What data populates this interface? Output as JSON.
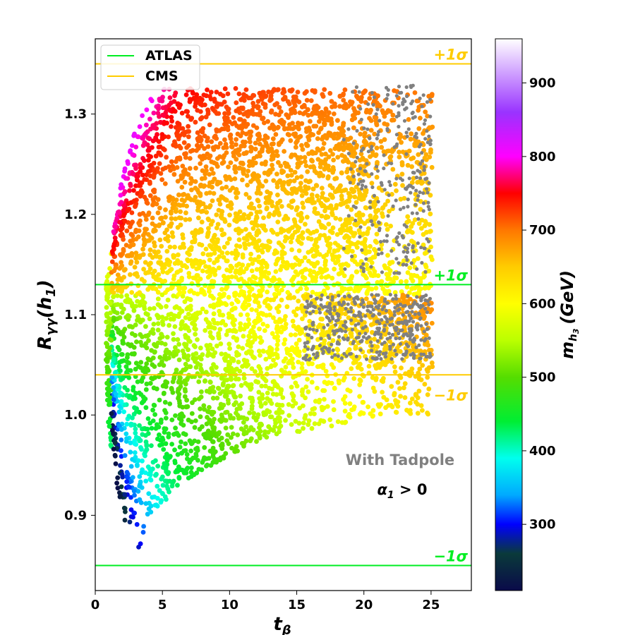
{
  "chart_data": {
    "type": "scatter",
    "title": "",
    "xlabel": "t",
    "xlabel_sub": "β",
    "ylabel_main": "R",
    "ylabel_sub": "γγ",
    "ylabel_arg": "(h",
    "ylabel_arg_sub": "1",
    "ylabel_close": ")",
    "xlim": [
      0,
      28
    ],
    "ylim": [
      0.825,
      1.375
    ],
    "x_ticks": [
      0,
      5,
      10,
      15,
      20,
      25
    ],
    "y_ticks": [
      0.9,
      1.0,
      1.1,
      1.2,
      1.3
    ],
    "y_tick_labels": [
      "0.9",
      "1.0",
      "1.1",
      "1.2",
      "1.3"
    ],
    "grid": false,
    "legend": {
      "placement": "top-left",
      "entries": [
        {
          "label": "ATLAS",
          "color": "#00ee22"
        },
        {
          "label": "CMS",
          "color": "#ffcc00"
        }
      ]
    },
    "reference_lines": [
      {
        "name": "CMS +1σ",
        "y": 1.35,
        "color": "#ffcc00",
        "label": "+1σ"
      },
      {
        "name": "ATLAS +1σ",
        "y": 1.13,
        "color": "#00ee22",
        "label": "+1σ"
      },
      {
        "name": "CMS -1σ",
        "y": 1.04,
        "color": "#ffcc00",
        "label": "−1σ"
      },
      {
        "name": "ATLAS -1σ",
        "y": 0.85,
        "color": "#00ee22",
        "label": "−1σ"
      }
    ],
    "annotations": [
      {
        "text": "With Tadpole",
        "x": 22.5,
        "y": 0.952,
        "color": "#808080"
      },
      {
        "text_main": "α",
        "text_sub": "1",
        "text_rest": " > 0",
        "x": 22.5,
        "y": 0.92,
        "color": "#000000"
      }
    ],
    "colorbar": {
      "label_main": "m",
      "label_sub": "h",
      "label_subsub": "3",
      "label_unit": "(GeV)",
      "range": [
        210,
        960
      ],
      "ticks": [
        300,
        400,
        500,
        600,
        700,
        800,
        900
      ],
      "colormap_stops": [
        {
          "value": 210,
          "color": "#0a0a4a"
        },
        {
          "value": 260,
          "color": "#0a3a3a"
        },
        {
          "value": 300,
          "color": "#0000ff"
        },
        {
          "value": 340,
          "color": "#00aaff"
        },
        {
          "value": 390,
          "color": "#00ffee"
        },
        {
          "value": 440,
          "color": "#00ee33"
        },
        {
          "value": 500,
          "color": "#55dd00"
        },
        {
          "value": 550,
          "color": "#bbff00"
        },
        {
          "value": 600,
          "color": "#ffff00"
        },
        {
          "value": 650,
          "color": "#ffcc00"
        },
        {
          "value": 700,
          "color": "#ff7700"
        },
        {
          "value": 750,
          "color": "#ff0000"
        },
        {
          "value": 800,
          "color": "#ff00ff"
        },
        {
          "value": 860,
          "color": "#9933ff"
        },
        {
          "value": 960,
          "color": "#ffffff"
        }
      ]
    },
    "series": [
      {
        "description": "colored points (color = m_h3), envelope approximated",
        "envelope_upper": [
          [
            0.8,
            1.13
          ],
          [
            1.5,
            1.2
          ],
          [
            2.5,
            1.27
          ],
          [
            3.5,
            1.31
          ],
          [
            5,
            1.325
          ],
          [
            10,
            1.326
          ],
          [
            20,
            1.324
          ],
          [
            25,
            1.323
          ]
        ],
        "envelope_lower": [
          [
            0.8,
            1.05
          ],
          [
            1.0,
            0.98
          ],
          [
            2.0,
            0.9
          ],
          [
            3.2,
            0.866
          ],
          [
            4.5,
            0.905
          ],
          [
            6,
            0.925
          ],
          [
            8,
            0.945
          ],
          [
            10,
            0.96
          ],
          [
            14,
            0.98
          ],
          [
            18,
            0.99
          ],
          [
            22,
            1.0
          ],
          [
            25,
            1.0
          ]
        ]
      },
      {
        "name": "grey points",
        "color": "#808080",
        "regions": [
          {
            "x": [
              18.5,
              25
            ],
            "y": [
              1.14,
              1.33
            ]
          },
          {
            "x": [
              15.5,
              25
            ],
            "y": [
              1.055,
              1.12
            ]
          }
        ]
      }
    ]
  }
}
